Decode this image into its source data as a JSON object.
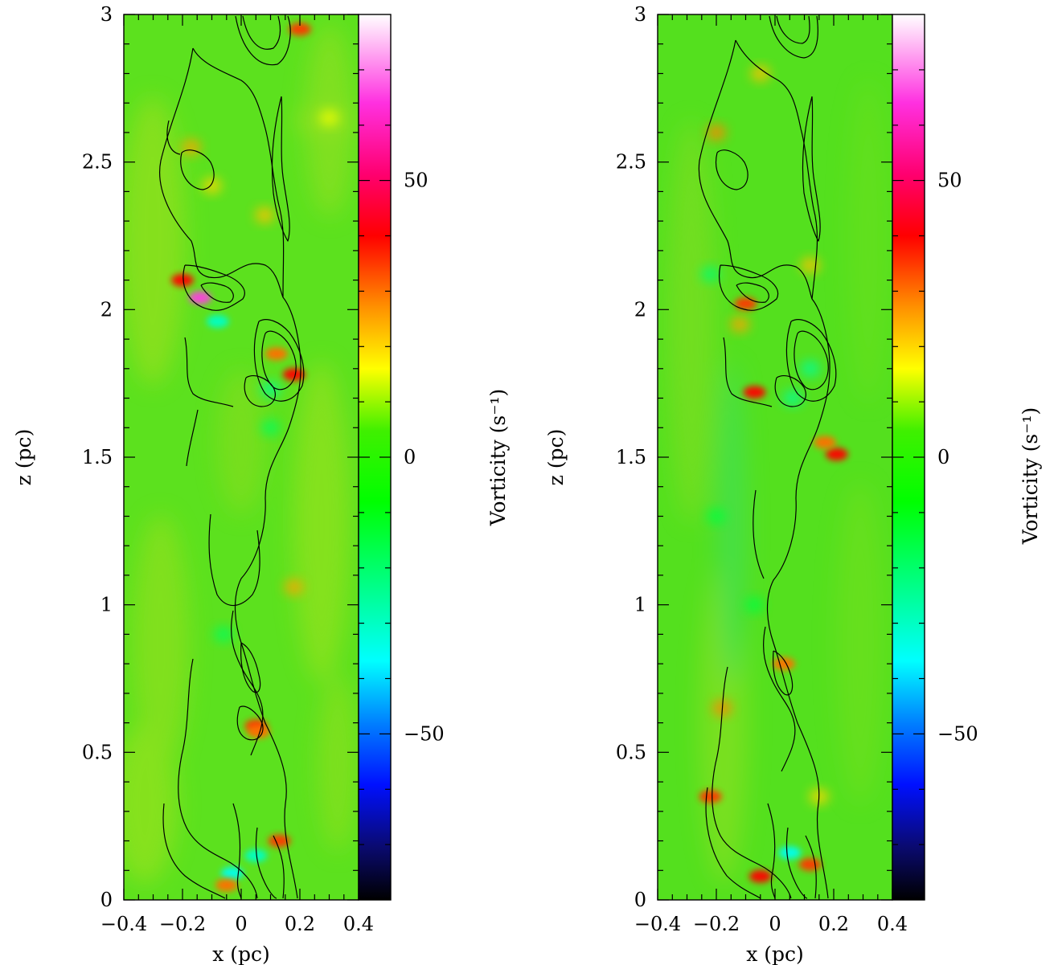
{
  "chart_data": [
    {
      "type": "heatmap",
      "panel": "left",
      "title": "",
      "xlabel": "x (pc)",
      "ylabel": "z (pc)",
      "xlim": [
        -0.4,
        0.4
      ],
      "ylim": [
        0,
        3
      ],
      "xticks": [
        -0.4,
        -0.2,
        0,
        0.2,
        0.4
      ],
      "xtick_labels": [
        "−0.4",
        "−0.2",
        "0",
        "0.2",
        "0.4"
      ],
      "yticks": [
        0,
        0.5,
        1,
        1.5,
        2,
        2.5,
        3
      ],
      "ytick_labels": [
        "0",
        "0.5",
        "1",
        "1.5",
        "2",
        "2.5",
        "3"
      ],
      "colorbar": {
        "label": "Vorticity (s⁻¹)",
        "range": [
          -80,
          80
        ],
        "ticks": [
          -50,
          0,
          50
        ],
        "tick_labels": [
          "−50",
          "0",
          "50"
        ]
      },
      "hotspots": [
        {
          "x": -0.14,
          "z": 2.04,
          "value": 65
        },
        {
          "x": -0.2,
          "z": 2.1,
          "value": 40
        },
        {
          "x": 0.18,
          "z": 1.78,
          "value": 40
        },
        {
          "x": 0.05,
          "z": 0.59,
          "value": 35
        },
        {
          "x": 0.06,
          "z": 0.57,
          "value": 30
        },
        {
          "x": 0.13,
          "z": 0.2,
          "value": 35
        },
        {
          "x": -0.03,
          "z": 0.09,
          "value": -35
        },
        {
          "x": 0.05,
          "z": 0.15,
          "value": -30
        },
        {
          "x": -0.08,
          "z": 1.96,
          "value": -30
        },
        {
          "x": 0.1,
          "z": 1.73,
          "value": -25
        },
        {
          "x": 0.2,
          "z": 2.95,
          "value": 35
        },
        {
          "x": -0.05,
          "z": 0.05,
          "value": 30
        },
        {
          "x": 0.12,
          "z": 1.85,
          "value": 30
        },
        {
          "x": -0.17,
          "z": 2.55,
          "value": 25
        },
        {
          "x": 0.18,
          "z": 1.06,
          "value": 25
        },
        {
          "x": 0.08,
          "z": 2.32,
          "value": 22
        },
        {
          "x": -0.1,
          "z": 2.42,
          "value": 20
        },
        {
          "x": 0.1,
          "z": 1.6,
          "value": -18
        },
        {
          "x": -0.06,
          "z": 0.9,
          "value": -18
        },
        {
          "x": 0.3,
          "z": 2.65,
          "value": 15
        }
      ]
    },
    {
      "type": "heatmap",
      "panel": "right",
      "title": "",
      "xlabel": "x (pc)",
      "ylabel": "z (pc)",
      "xlim": [
        -0.4,
        0.4
      ],
      "ylim": [
        0,
        3
      ],
      "xticks": [
        -0.4,
        -0.2,
        0,
        0.2,
        0.4
      ],
      "xtick_labels": [
        "−0.4",
        "−0.2",
        "0",
        "0.2",
        "0.4"
      ],
      "yticks": [
        0,
        0.5,
        1,
        1.5,
        2,
        2.5,
        3
      ],
      "ytick_labels": [
        "0",
        "0.5",
        "1",
        "1.5",
        "2",
        "2.5",
        "3"
      ],
      "colorbar": {
        "label": "Vorticity (s⁻¹)",
        "range": [
          -80,
          80
        ],
        "ticks": [
          -50,
          0,
          50
        ],
        "tick_labels": [
          "−50",
          "0",
          "50"
        ]
      },
      "hotspots": [
        {
          "x": -0.1,
          "z": 2.02,
          "value": 35
        },
        {
          "x": -0.07,
          "z": 1.72,
          "value": 40
        },
        {
          "x": 0.21,
          "z": 1.51,
          "value": 40
        },
        {
          "x": 0.17,
          "z": 1.55,
          "value": 30
        },
        {
          "x": -0.05,
          "z": 0.08,
          "value": 40
        },
        {
          "x": 0.12,
          "z": 0.12,
          "value": 35
        },
        {
          "x": 0.05,
          "z": 0.16,
          "value": -35
        },
        {
          "x": 0.03,
          "z": 0.8,
          "value": 30
        },
        {
          "x": -0.22,
          "z": 0.35,
          "value": 35
        },
        {
          "x": -0.18,
          "z": 0.65,
          "value": 28
        },
        {
          "x": -0.2,
          "z": 2.6,
          "value": 28
        },
        {
          "x": -0.05,
          "z": 2.8,
          "value": 22
        },
        {
          "x": 0.12,
          "z": 2.15,
          "value": 22
        },
        {
          "x": 0.12,
          "z": 1.8,
          "value": -25
        },
        {
          "x": -0.22,
          "z": 2.12,
          "value": -20
        },
        {
          "x": 0.06,
          "z": 1.7,
          "value": -25
        },
        {
          "x": -0.2,
          "z": 1.3,
          "value": -15
        },
        {
          "x": -0.07,
          "z": 1.0,
          "value": -15
        },
        {
          "x": -0.12,
          "z": 1.95,
          "value": 25
        },
        {
          "x": 0.15,
          "z": 0.35,
          "value": 20
        }
      ]
    }
  ]
}
